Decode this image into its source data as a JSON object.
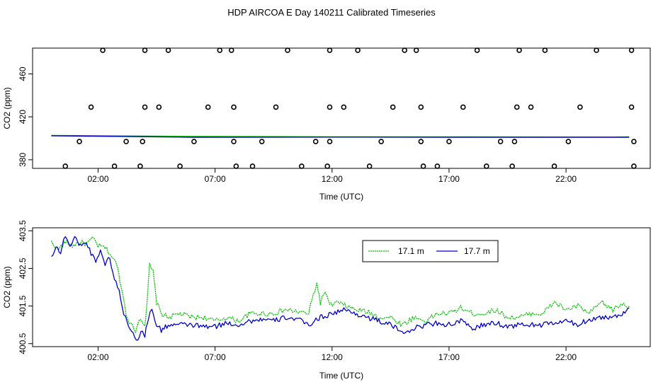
{
  "figure": {
    "title": "HDP AIRCOA E  Day 140211  Calibrated Timeseries"
  },
  "chart_data": [
    {
      "type": "scatter",
      "xlabel": "Time (UTC)",
      "ylabel": "CO2 (ppm)",
      "xlim": [
        -0.8,
        25.6
      ],
      "ylim": [
        372,
        484
      ],
      "x_ticks": [
        2,
        7,
        12,
        17,
        22
      ],
      "x_tick_labels": [
        "02:00",
        "07:00",
        "12:00",
        "17:00",
        "22:00"
      ],
      "y_ticks": [
        380,
        420,
        460
      ],
      "y_tick_labels": [
        "380",
        "420",
        "460"
      ],
      "grid": false,
      "legend": "none",
      "colors": {
        "green": "#00c000",
        "blue": "#0000cc",
        "points": "#000000"
      },
      "levels": [
        374,
        397,
        429,
        482
      ],
      "points": [
        [
          0.6,
          374
        ],
        [
          2.7,
          374
        ],
        [
          3.8,
          374
        ],
        [
          5.5,
          374
        ],
        [
          7.9,
          374
        ],
        [
          8.6,
          374
        ],
        [
          10.7,
          374
        ],
        [
          11.8,
          374
        ],
        [
          13.6,
          374
        ],
        [
          15.9,
          374
        ],
        [
          16.5,
          374
        ],
        [
          18.6,
          374
        ],
        [
          19.7,
          374
        ],
        [
          21.5,
          374
        ],
        [
          24.9,
          374
        ],
        [
          1.2,
          397
        ],
        [
          3.2,
          397
        ],
        [
          3.9,
          397
        ],
        [
          6.1,
          397
        ],
        [
          7.8,
          397
        ],
        [
          9.0,
          397
        ],
        [
          11.3,
          397
        ],
        [
          11.9,
          397
        ],
        [
          14.1,
          397
        ],
        [
          15.8,
          397
        ],
        [
          17.0,
          397
        ],
        [
          19.2,
          397
        ],
        [
          19.8,
          397
        ],
        [
          22.1,
          397
        ],
        [
          24.9,
          397
        ],
        [
          1.7,
          429
        ],
        [
          4.0,
          429
        ],
        [
          4.6,
          429
        ],
        [
          6.7,
          429
        ],
        [
          7.8,
          429
        ],
        [
          9.6,
          429
        ],
        [
          11.9,
          429
        ],
        [
          12.5,
          429
        ],
        [
          14.6,
          429
        ],
        [
          15.8,
          429
        ],
        [
          17.6,
          429
        ],
        [
          19.9,
          429
        ],
        [
          20.5,
          429
        ],
        [
          22.6,
          429
        ],
        [
          24.8,
          429
        ],
        [
          2.2,
          482
        ],
        [
          4.0,
          482
        ],
        [
          5.0,
          482
        ],
        [
          7.2,
          482
        ],
        [
          7.7,
          482
        ],
        [
          10.1,
          482
        ],
        [
          11.9,
          482
        ],
        [
          13.1,
          482
        ],
        [
          15.1,
          482
        ],
        [
          15.6,
          482
        ],
        [
          18.2,
          482
        ],
        [
          20.0,
          482
        ],
        [
          21.1,
          482
        ],
        [
          23.3,
          482
        ],
        [
          24.8,
          482
        ]
      ],
      "series": [
        {
          "values": [
            [
              0,
              402.7
            ],
            [
              6,
              401.8
            ],
            [
              12,
              401.4
            ],
            [
              18,
              401.3
            ],
            [
              24,
              401.2
            ],
            [
              24.7,
              401.3
            ]
          ]
        },
        {
          "values": [
            [
              0,
              402.4
            ],
            [
              6,
              401.0
            ],
            [
              12,
              401.1
            ],
            [
              18,
              400.9
            ],
            [
              24,
              400.9
            ],
            [
              24.7,
              401.0
            ]
          ]
        }
      ]
    },
    {
      "type": "line",
      "xlabel": "Time (UTC)",
      "ylabel": "CO2 (ppm)",
      "xlim": [
        -0.8,
        25.6
      ],
      "ylim": [
        400.42,
        403.58
      ],
      "x_ticks": [
        2,
        7,
        12,
        17,
        22
      ],
      "x_tick_labels": [
        "02:00",
        "07:00",
        "12:00",
        "17:00",
        "22:00"
      ],
      "y_ticks": [
        400.5,
        401.5,
        402.5,
        403.5
      ],
      "y_tick_labels": [
        "400.5",
        "401.5",
        "402.5",
        "403.5"
      ],
      "grid": false,
      "legend": "top-center",
      "series": [
        {
          "name": "17.1 m",
          "color": "#00c000",
          "values": [
            [
              0.0,
              403.2
            ],
            [
              0.3,
              403.0
            ],
            [
              0.6,
              403.2
            ],
            [
              0.9,
              403.1
            ],
            [
              1.2,
              403.2
            ],
            [
              1.5,
              403.15
            ],
            [
              1.8,
              403.3
            ],
            [
              2.0,
              403.1
            ],
            [
              2.3,
              403.05
            ],
            [
              2.5,
              402.9
            ],
            [
              2.8,
              402.6
            ],
            [
              3.0,
              402.0
            ],
            [
              3.2,
              401.3
            ],
            [
              3.4,
              401.0
            ],
            [
              3.6,
              400.85
            ],
            [
              3.8,
              401.2
            ],
            [
              4.0,
              401.0
            ],
            [
              4.1,
              401.6
            ],
            [
              4.2,
              402.6
            ],
            [
              4.35,
              402.4
            ],
            [
              4.5,
              401.6
            ],
            [
              4.7,
              401.3
            ],
            [
              5.0,
              401.2
            ],
            [
              5.5,
              401.3
            ],
            [
              6.0,
              401.2
            ],
            [
              6.5,
              401.2
            ],
            [
              7.0,
              401.1
            ],
            [
              7.5,
              401.2
            ],
            [
              8.0,
              401.1
            ],
            [
              8.5,
              401.3
            ],
            [
              9.0,
              401.3
            ],
            [
              9.5,
              401.3
            ],
            [
              10.0,
              401.4
            ],
            [
              10.5,
              401.35
            ],
            [
              11.0,
              401.3
            ],
            [
              11.2,
              401.8
            ],
            [
              11.35,
              402.1
            ],
            [
              11.5,
              401.6
            ],
            [
              11.7,
              401.9
            ],
            [
              11.9,
              401.5
            ],
            [
              12.2,
              401.6
            ],
            [
              12.6,
              401.5
            ],
            [
              13.0,
              401.4
            ],
            [
              13.5,
              401.35
            ],
            [
              14.0,
              401.2
            ],
            [
              14.5,
              401.2
            ],
            [
              15.0,
              401.0
            ],
            [
              15.5,
              401.2
            ],
            [
              16.0,
              401.1
            ],
            [
              16.5,
              401.3
            ],
            [
              17.0,
              401.3
            ],
            [
              17.5,
              401.45
            ],
            [
              18.0,
              401.3
            ],
            [
              18.5,
              401.3
            ],
            [
              19.0,
              401.4
            ],
            [
              19.5,
              401.2
            ],
            [
              20.0,
              401.2
            ],
            [
              20.5,
              401.3
            ],
            [
              21.0,
              401.3
            ],
            [
              21.5,
              401.6
            ],
            [
              22.0,
              401.4
            ],
            [
              22.5,
              401.5
            ],
            [
              23.0,
              401.3
            ],
            [
              23.5,
              401.6
            ],
            [
              24.0,
              401.4
            ],
            [
              24.4,
              401.55
            ],
            [
              24.7,
              401.5
            ]
          ]
        },
        {
          "name": "17.7 m",
          "color": "#0000cc",
          "values": [
            [
              0.0,
              402.8
            ],
            [
              0.2,
              403.1
            ],
            [
              0.4,
              402.9
            ],
            [
              0.6,
              403.4
            ],
            [
              0.8,
              403.1
            ],
            [
              1.0,
              403.3
            ],
            [
              1.3,
              403.1
            ],
            [
              1.5,
              403.2
            ],
            [
              1.7,
              402.9
            ],
            [
              1.9,
              402.7
            ],
            [
              2.1,
              403.0
            ],
            [
              2.3,
              402.6
            ],
            [
              2.5,
              402.8
            ],
            [
              2.7,
              402.2
            ],
            [
              2.9,
              401.9
            ],
            [
              3.1,
              401.3
            ],
            [
              3.3,
              401.0
            ],
            [
              3.5,
              400.8
            ],
            [
              3.7,
              400.55
            ],
            [
              3.9,
              400.9
            ],
            [
              4.0,
              400.7
            ],
            [
              4.15,
              401.2
            ],
            [
              4.3,
              401.4
            ],
            [
              4.5,
              401.0
            ],
            [
              4.7,
              400.85
            ],
            [
              5.0,
              401.0
            ],
            [
              5.5,
              401.0
            ],
            [
              6.0,
              401.0
            ],
            [
              6.5,
              400.95
            ],
            [
              7.0,
              400.95
            ],
            [
              7.5,
              401.05
            ],
            [
              8.0,
              401.0
            ],
            [
              8.5,
              401.1
            ],
            [
              9.0,
              401.15
            ],
            [
              9.5,
              401.1
            ],
            [
              10.0,
              401.2
            ],
            [
              10.5,
              401.15
            ],
            [
              11.0,
              401.0
            ],
            [
              11.5,
              401.2
            ],
            [
              12.0,
              401.3
            ],
            [
              12.5,
              401.4
            ],
            [
              13.0,
              401.3
            ],
            [
              13.5,
              401.2
            ],
            [
              14.0,
              401.1
            ],
            [
              14.5,
              401.0
            ],
            [
              15.0,
              400.8
            ],
            [
              15.5,
              400.9
            ],
            [
              16.0,
              401.0
            ],
            [
              16.5,
              401.05
            ],
            [
              17.0,
              401.0
            ],
            [
              17.5,
              401.1
            ],
            [
              18.0,
              400.9
            ],
            [
              18.5,
              401.0
            ],
            [
              19.0,
              401.05
            ],
            [
              19.5,
              400.95
            ],
            [
              20.0,
              401.0
            ],
            [
              20.5,
              401.0
            ],
            [
              21.0,
              401.0
            ],
            [
              21.5,
              401.05
            ],
            [
              22.0,
              401.1
            ],
            [
              22.5,
              401.0
            ],
            [
              23.0,
              401.15
            ],
            [
              23.5,
              401.2
            ],
            [
              24.0,
              401.2
            ],
            [
              24.4,
              401.3
            ],
            [
              24.7,
              401.45
            ]
          ]
        }
      ]
    }
  ]
}
